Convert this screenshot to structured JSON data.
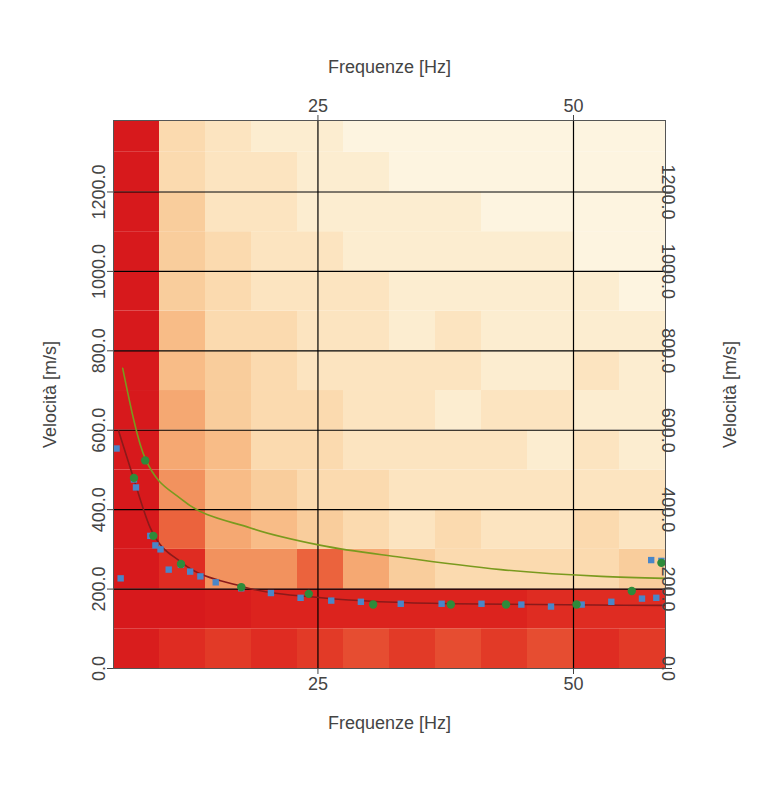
{
  "chart_data": {
    "type": "heatmap",
    "x_label": "Frequenze [Hz]",
    "y_label": "Velocità [m/s]",
    "xlim": [
      5,
      59
    ],
    "ylim": [
      0,
      1380
    ],
    "xticks": [
      25,
      50
    ],
    "yticks": [
      {
        "value": 0,
        "label": "0.0"
      },
      {
        "value": 200,
        "label": "200.0"
      },
      {
        "value": 400,
        "label": "400.0"
      },
      {
        "value": 600,
        "label": "600.0"
      },
      {
        "value": 800,
        "label": "800.0"
      },
      {
        "value": 1000,
        "label": "1000.0"
      },
      {
        "value": 1200,
        "label": "1200.0"
      }
    ],
    "grid": true,
    "heatmap": {
      "x_edges": [
        5,
        9.5,
        14,
        18.5,
        23,
        27.5,
        32,
        36.5,
        41,
        45.5,
        50,
        54.5,
        59
      ],
      "y_edges": [
        0,
        100,
        200,
        300,
        400,
        500,
        600,
        700,
        800,
        900,
        1000,
        1100,
        1200,
        1300,
        1400
      ],
      "values": [
        [
          0.9,
          0.8,
          0.75,
          0.8,
          0.75,
          0.7,
          0.75,
          0.7,
          0.75,
          0.7,
          0.8,
          0.75
        ],
        [
          0.95,
          0.95,
          0.9,
          0.85,
          0.85,
          0.85,
          0.85,
          0.85,
          0.85,
          0.8,
          0.8,
          0.8
        ],
        [
          0.95,
          0.8,
          0.55,
          0.55,
          0.65,
          0.5,
          0.4,
          0.35,
          0.35,
          0.35,
          0.35,
          0.4
        ],
        [
          0.95,
          0.65,
          0.5,
          0.45,
          0.4,
          0.35,
          0.3,
          0.35,
          0.3,
          0.3,
          0.35,
          0.3
        ],
        [
          0.95,
          0.55,
          0.45,
          0.4,
          0.35,
          0.35,
          0.3,
          0.3,
          0.3,
          0.3,
          0.3,
          0.3
        ],
        [
          0.95,
          0.5,
          0.45,
          0.35,
          0.35,
          0.3,
          0.3,
          0.3,
          0.3,
          0.25,
          0.3,
          0.25
        ],
        [
          0.95,
          0.5,
          0.4,
          0.35,
          0.35,
          0.3,
          0.3,
          0.25,
          0.3,
          0.3,
          0.25,
          0.25
        ],
        [
          0.95,
          0.45,
          0.4,
          0.35,
          0.3,
          0.3,
          0.3,
          0.3,
          0.25,
          0.25,
          0.3,
          0.25
        ],
        [
          0.95,
          0.45,
          0.35,
          0.35,
          0.3,
          0.3,
          0.25,
          0.3,
          0.25,
          0.25,
          0.25,
          0.25
        ],
        [
          0.95,
          0.4,
          0.35,
          0.3,
          0.3,
          0.3,
          0.25,
          0.25,
          0.25,
          0.25,
          0.25,
          0.2
        ],
        [
          0.95,
          0.4,
          0.35,
          0.3,
          0.3,
          0.25,
          0.25,
          0.25,
          0.25,
          0.25,
          0.2,
          0.2
        ],
        [
          0.95,
          0.4,
          0.3,
          0.3,
          0.25,
          0.25,
          0.25,
          0.25,
          0.2,
          0.2,
          0.2,
          0.2
        ],
        [
          0.95,
          0.35,
          0.3,
          0.3,
          0.25,
          0.25,
          0.2,
          0.2,
          0.2,
          0.2,
          0.2,
          0.2
        ],
        [
          0.95,
          0.35,
          0.3,
          0.25,
          0.25,
          0.2,
          0.2,
          0.2,
          0.2,
          0.2,
          0.2,
          0.2
        ]
      ]
    },
    "series": [
      {
        "type": "line",
        "color": "#7a9a1e",
        "line_style": "solid",
        "x": [
          5.9,
          8.1,
          11.6,
          18.4,
          25.3,
          33.1,
          42.9,
          52.7,
          59
        ],
        "values": [
          756,
          529,
          427,
          354,
          310,
          280,
          249,
          232,
          227
        ]
      },
      {
        "type": "line",
        "color": "#8b1a1a",
        "line_style": "solid",
        "x": [
          5.5,
          7,
          8.6,
          11.6,
          17.5,
          25.3,
          38,
          59
        ],
        "values": [
          598,
          476,
          354,
          268,
          207,
          178,
          163,
          159
        ]
      },
      {
        "type": "scatter",
        "color": "#4a86c8",
        "marker": "square",
        "x": [
          5.3,
          5.7,
          7.0,
          7.2,
          8.6,
          9.1,
          9.6,
          10.4,
          11.6,
          12.5,
          13.5,
          15,
          17.5,
          20.4,
          23.3,
          26.3,
          29.2,
          33.1,
          37.1,
          41,
          44.9,
          47.8,
          50.8,
          53.7,
          56.7,
          58.1,
          57.6,
          58.6
        ],
        "values": [
          554,
          227,
          476,
          456,
          334,
          310,
          300,
          249,
          261,
          244,
          232,
          217,
          202,
          190,
          178,
          171,
          168,
          163,
          163,
          163,
          161,
          156,
          161,
          168,
          176,
          178,
          273,
          271
        ]
      },
      {
        "type": "scatter",
        "color": "#2e8b3a",
        "marker": "circle",
        "x": [
          7.0,
          8.1,
          8.9,
          11.6,
          17.5,
          24.1,
          30.4,
          38,
          43.4,
          50.3,
          55.7,
          58.6
        ],
        "values": [
          480,
          524,
          334,
          263,
          205,
          188,
          161,
          161,
          161,
          161,
          195,
          266
        ]
      }
    ]
  }
}
